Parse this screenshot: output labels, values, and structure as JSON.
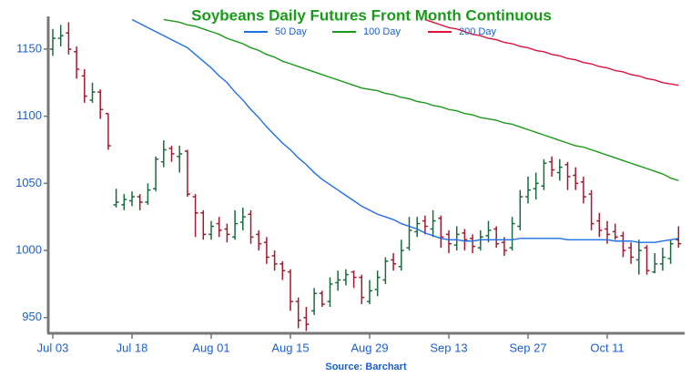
{
  "chart_data": {
    "type": "ohlc",
    "title": "Soybeans Daily Futures Front Month Continuous",
    "source": "Source: Barchart",
    "categories": [
      "Jul 03",
      null,
      null,
      null,
      null,
      null,
      null,
      null,
      null,
      null,
      "Jul 18",
      null,
      null,
      null,
      null,
      null,
      null,
      null,
      null,
      null,
      "Aug 01",
      null,
      null,
      null,
      null,
      null,
      null,
      null,
      null,
      null,
      "Aug 15",
      null,
      null,
      null,
      null,
      null,
      null,
      null,
      null,
      null,
      "Aug 29",
      null,
      null,
      null,
      null,
      null,
      null,
      null,
      null,
      null,
      "Sep 13",
      null,
      null,
      null,
      null,
      null,
      null,
      null,
      null,
      null,
      "Sep 27",
      null,
      null,
      null,
      null,
      null,
      null,
      null,
      null,
      null,
      "Oct 11",
      null,
      null,
      null,
      null,
      null,
      null,
      null,
      null,
      null
    ],
    "open": [
      1150,
      1158,
      1162,
      1148,
      1130,
      1112,
      1118,
      1102,
      1034,
      1034,
      1037,
      1040,
      1036,
      1046,
      1066,
      1076,
      1070,
      1074,
      1040,
      1028,
      1012,
      1020,
      1016,
      1010,
      1021,
      1027,
      1012,
      1006,
      996,
      990,
      984,
      962,
      950,
      955,
      968,
      962,
      976,
      978,
      984,
      980,
      962,
      971,
      978,
      993,
      988,
      1002,
      1014,
      1022,
      1016,
      1024,
      1012,
      1004,
      1013,
      1009,
      1002,
      1011,
      1016,
      1006,
      1002,
      1018,
      1040,
      1046,
      1048,
      1066,
      1058,
      1064,
      1056,
      1051,
      1042,
      1022,
      1016,
      1014,
      1011,
      1002,
      993,
      1002,
      984,
      990,
      994,
      1008
    ],
    "high": [
      1165,
      1168,
      1170,
      1152,
      1135,
      1125,
      1120,
      1102,
      1046,
      1042,
      1044,
      1042,
      1050,
      1070,
      1082,
      1078,
      1078,
      1075,
      1042,
      1030,
      1022,
      1025,
      1020,
      1030,
      1032,
      1030,
      1015,
      1010,
      1000,
      992,
      986,
      965,
      958,
      972,
      970,
      980,
      985,
      986,
      985,
      982,
      978,
      985,
      995,
      998,
      1008,
      1025,
      1025,
      1026,
      1030,
      1026,
      1015,
      1018,
      1016,
      1012,
      1015,
      1022,
      1018,
      1010,
      1025,
      1045,
      1055,
      1058,
      1068,
      1070,
      1068,
      1066,
      1062,
      1055,
      1045,
      1028,
      1022,
      1020,
      1014,
      1006,
      1008,
      1004,
      998,
      1002,
      1008,
      1018
    ],
    "low": [
      1145,
      1152,
      1146,
      1128,
      1110,
      1110,
      1098,
      1075,
      1032,
      1030,
      1033,
      1030,
      1034,
      1044,
      1062,
      1066,
      1058,
      1040,
      1010,
      1008,
      1008,
      1010,
      1006,
      1008,
      1015,
      1005,
      1000,
      990,
      985,
      978,
      955,
      942,
      940,
      952,
      958,
      958,
      970,
      974,
      972,
      960,
      960,
      966,
      975,
      985,
      985,
      1000,
      1010,
      1012,
      1010,
      1002,
      998,
      1000,
      1000,
      998,
      1000,
      1006,
      1002,
      996,
      1000,
      1015,
      1035,
      1038,
      1045,
      1055,
      1052,
      1045,
      1045,
      1035,
      1015,
      1010,
      1005,
      1008,
      995,
      990,
      982,
      982,
      983,
      985,
      990,
      1002
    ],
    "close": [
      1158,
      1160,
      1150,
      1135,
      1115,
      1118,
      1105,
      1078,
      1036,
      1038,
      1040,
      1036,
      1045,
      1068,
      1075,
      1072,
      1072,
      1042,
      1028,
      1012,
      1018,
      1015,
      1012,
      1020,
      1025,
      1010,
      1005,
      995,
      990,
      985,
      962,
      948,
      945,
      968,
      960,
      975,
      978,
      982,
      980,
      965,
      970,
      980,
      992,
      990,
      1000,
      1015,
      1020,
      1018,
      1022,
      1010,
      1005,
      1012,
      1008,
      1003,
      1010,
      1015,
      1005,
      1000,
      1020,
      1040,
      1045,
      1050,
      1065,
      1060,
      1062,
      1055,
      1050,
      1040,
      1020,
      1015,
      1012,
      1010,
      1000,
      995,
      1000,
      985,
      990,
      995,
      1005,
      1005
    ],
    "up_color": "#1a6b3c",
    "down_color": "#a3192e",
    "series": [
      {
        "name": "50 Day",
        "color": "#1f6fe5",
        "values": [
          null,
          null,
          null,
          null,
          null,
          null,
          null,
          null,
          null,
          null,
          1172,
          1169,
          1166,
          1163,
          1160,
          1157,
          1154,
          1151,
          1146,
          1141,
          1136,
          1130,
          1125,
          1118,
          1112,
          1105,
          1099,
          1092,
          1086,
          1080,
          1075,
          1069,
          1064,
          1058,
          1053,
          1049,
          1045,
          1041,
          1037,
          1033,
          1030,
          1027,
          1025,
          1023,
          1020,
          1018,
          1016,
          1013,
          1011,
          1009,
          1008,
          1008,
          1007,
          1007,
          1008,
          1008,
          1008,
          1008,
          1008,
          1009,
          1009,
          1009,
          1009,
          1009,
          1009,
          1008,
          1008,
          1008,
          1008,
          1008,
          1008,
          1007,
          1007,
          1007,
          1006,
          1006,
          1006,
          1007,
          1008,
          1009
        ]
      },
      {
        "name": "100 Day",
        "color": "#1a9a1a",
        "values": [
          null,
          null,
          null,
          null,
          null,
          null,
          null,
          null,
          null,
          null,
          null,
          null,
          null,
          null,
          1172,
          1171,
          1170,
          1168,
          1167,
          1165,
          1163,
          1161,
          1158,
          1156,
          1154,
          1151,
          1149,
          1146,
          1144,
          1141,
          1139,
          1137,
          1135,
          1133,
          1131,
          1129,
          1127,
          1125,
          1123,
          1121,
          1120,
          1119,
          1117,
          1116,
          1114,
          1113,
          1111,
          1110,
          1108,
          1107,
          1105,
          1104,
          1102,
          1101,
          1099,
          1098,
          1097,
          1095,
          1094,
          1092,
          1090,
          1088,
          1086,
          1084,
          1082,
          1080,
          1078,
          1077,
          1075,
          1073,
          1071,
          1069,
          1067,
          1065,
          1063,
          1061,
          1059,
          1057,
          1054,
          1052
        ]
      },
      {
        "name": "200 Day",
        "color": "#dc143c",
        "values": [
          null,
          null,
          null,
          null,
          null,
          null,
          null,
          null,
          null,
          null,
          null,
          null,
          null,
          null,
          null,
          null,
          null,
          null,
          null,
          null,
          null,
          null,
          null,
          null,
          null,
          null,
          null,
          null,
          null,
          null,
          null,
          null,
          null,
          null,
          null,
          null,
          null,
          null,
          null,
          null,
          null,
          null,
          null,
          null,
          null,
          null,
          null,
          1172,
          1170,
          1168,
          1166,
          1165,
          1163,
          1161,
          1160,
          1158,
          1157,
          1155,
          1154,
          1152,
          1151,
          1149,
          1148,
          1146,
          1145,
          1143,
          1142,
          1140,
          1139,
          1137,
          1136,
          1134,
          1133,
          1131,
          1130,
          1128,
          1127,
          1125,
          1124,
          1123
        ]
      }
    ],
    "ylim": [
      939,
      1173
    ],
    "yticks": [
      950,
      1000,
      1050,
      1100,
      1150
    ]
  }
}
